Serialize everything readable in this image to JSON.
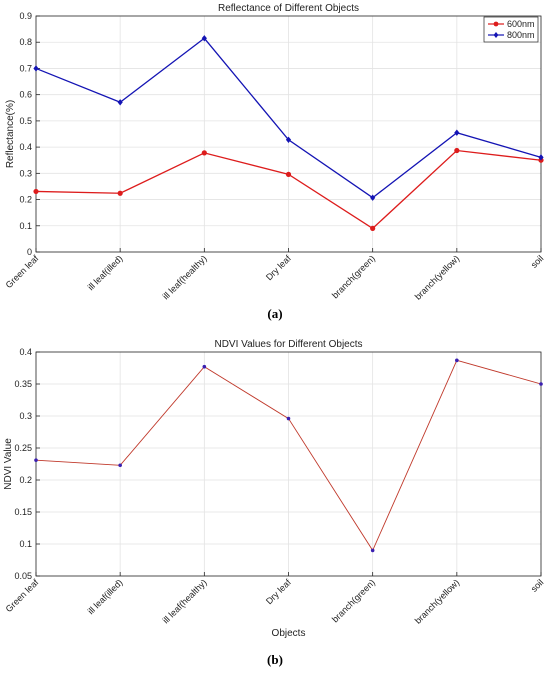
{
  "chart_data": [
    {
      "type": "line",
      "title": "Reflectance of Different Objects",
      "xlabel": "",
      "ylabel": "Reflectance(%)",
      "caption": "(a)",
      "categories": [
        "Green leaf",
        "ill leaf(illed)",
        "ill leaf(healthy)",
        "Dry leaf",
        "branch(green)",
        "branch(yellow)",
        "soil"
      ],
      "ylim": [
        0,
        0.9
      ],
      "yticks": [
        0,
        0.1,
        0.2,
        0.3,
        0.4,
        0.5,
        0.6,
        0.7,
        0.8,
        0.9
      ],
      "ytick_labels": [
        "0",
        "0.1",
        "0.2",
        "0.3",
        "0.4",
        "0.5",
        "0.6",
        "0.7",
        "0.8",
        "0.9"
      ],
      "grid": true,
      "legend": "top-right",
      "series": [
        {
          "name": "600nm",
          "color": "#dd1c1c",
          "marker": "circle",
          "values": [
            0.231,
            0.224,
            0.378,
            0.296,
            0.09,
            0.387,
            0.35
          ]
        },
        {
          "name": "800nm",
          "color": "#1414b4",
          "marker": "diamond",
          "values": [
            0.7,
            0.571,
            0.815,
            0.428,
            0.207,
            0.455,
            0.361
          ]
        }
      ]
    },
    {
      "type": "line",
      "title": "NDVI Values for Different Objects",
      "xlabel": "Objects",
      "ylabel": "NDVI Value",
      "caption": "(b)",
      "categories": [
        "Green leaf",
        "ill leaf(illed)",
        "ill leaf(healthy)",
        "Dry leaf",
        "branch(green)",
        "branch(yellow)",
        "soil"
      ],
      "ylim": [
        0.05,
        0.4
      ],
      "yticks": [
        0.05,
        0.1,
        0.15,
        0.2,
        0.25,
        0.3,
        0.35,
        0.4
      ],
      "ytick_labels": [
        "0.05",
        "0.1",
        "0.15",
        "0.2",
        "0.25",
        "0.3",
        "0.35",
        "0.4"
      ],
      "grid": true,
      "series": [
        {
          "color": "#c0392b",
          "marker_color": "#3a1fb0",
          "marker": "point",
          "values": [
            0.231,
            0.223,
            0.377,
            0.296,
            0.09,
            0.387,
            0.35
          ]
        }
      ]
    }
  ]
}
